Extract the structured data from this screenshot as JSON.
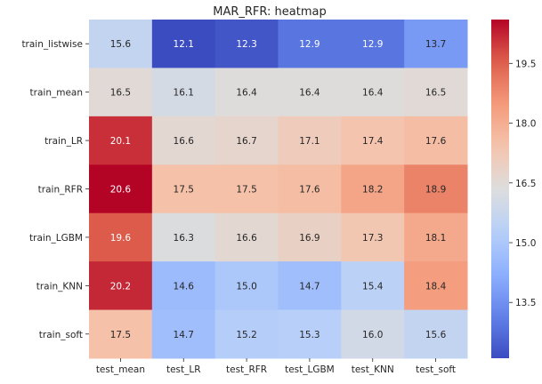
{
  "chart_data": {
    "type": "heatmap",
    "title": "MAR_RFR: heatmap",
    "xlabel": "",
    "ylabel": "",
    "columns": [
      "test_mean",
      "test_LR",
      "test_RFR",
      "test_LGBM",
      "test_KNN",
      "test_soft"
    ],
    "rows": [
      "train_listwise",
      "train_mean",
      "train_LR",
      "train_RFR",
      "train_LGBM",
      "train_KNN",
      "train_soft"
    ],
    "values": [
      [
        15.6,
        12.1,
        12.3,
        12.9,
        12.9,
        13.7
      ],
      [
        16.5,
        16.1,
        16.4,
        16.4,
        16.4,
        16.5
      ],
      [
        20.1,
        16.6,
        16.7,
        17.1,
        17.4,
        17.6
      ],
      [
        20.6,
        17.5,
        17.5,
        17.6,
        18.2,
        18.9
      ],
      [
        19.6,
        16.3,
        16.6,
        16.9,
        17.3,
        18.1
      ],
      [
        20.2,
        14.6,
        15.0,
        14.7,
        15.4,
        18.4
      ],
      [
        17.5,
        14.7,
        15.2,
        15.3,
        16.0,
        15.6
      ]
    ],
    "value_format": "0.0",
    "colormap": "coolwarm",
    "vmin": 12.1,
    "vmax": 20.6,
    "colorbar_ticks": [
      "13.5",
      "15.0",
      "16.5",
      "18.0",
      "19.5"
    ],
    "colorbar_tick_values": [
      13.5,
      15.0,
      16.5,
      18.0,
      19.5
    ]
  },
  "colors": {
    "background": "#ffffff",
    "text": "#262626",
    "annotation_text": "#262626",
    "annotation_text_light": "#ffffff"
  }
}
